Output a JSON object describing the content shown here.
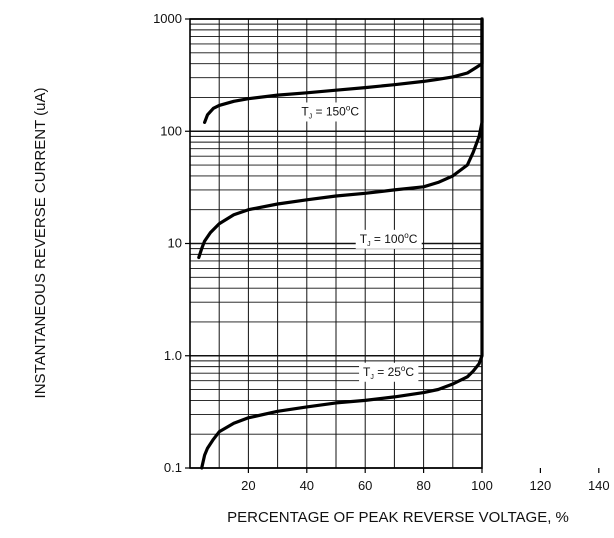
{
  "chart_data": {
    "type": "line",
    "title": "",
    "xlabel": "PERCENTAGE OF PEAK REVERSE VOLTAGE, %",
    "ylabel": "INSTANTANEOUS REVERSE CURRENT (uA)",
    "x_ticks": [
      "20",
      "40",
      "60",
      "80",
      "100",
      "120",
      "140"
    ],
    "x_tick_values": [
      20,
      40,
      60,
      80,
      100,
      120,
      140
    ],
    "y_ticks": [
      "0.1",
      "1.0",
      "10",
      "100",
      "1000"
    ],
    "y_tick_values": [
      0.1,
      1,
      10,
      100,
      1000
    ],
    "xlim": [
      0,
      140
    ],
    "ylim": [
      0.1,
      1000
    ],
    "y_scale": "log",
    "grid": true,
    "legend": "none",
    "series": [
      {
        "name": "TJ = 150°C",
        "label_parts": {
          "prefix": "T",
          "sub": "J",
          "mid": " = 150",
          "deg": "o",
          "suffix": "C"
        },
        "label_at": {
          "x": 48,
          "y": 150
        },
        "x": [
          5,
          6,
          8,
          10,
          15,
          20,
          30,
          40,
          50,
          60,
          70,
          80,
          85,
          90,
          95,
          98,
          100,
          100
        ],
        "y": [
          120,
          140,
          160,
          170,
          185,
          195,
          210,
          220,
          232,
          245,
          260,
          278,
          290,
          305,
          330,
          370,
          400,
          1000
        ]
      },
      {
        "name": "TJ = 100°C",
        "label_parts": {
          "prefix": "T",
          "sub": "J",
          "mid": " = 100",
          "deg": "o",
          "suffix": "C"
        },
        "label_at": {
          "x": 68,
          "y": 11
        },
        "x": [
          3,
          4,
          5,
          7,
          10,
          15,
          20,
          30,
          40,
          50,
          60,
          70,
          80,
          85,
          90,
          95,
          97,
          99,
          100,
          100
        ],
        "y": [
          7.5,
          9,
          10.5,
          12.5,
          15,
          18,
          20,
          22.5,
          24.5,
          26.5,
          28,
          30,
          32,
          35,
          40,
          50,
          65,
          90,
          120,
          1000
        ]
      },
      {
        "name": "TJ = 25°C",
        "label_parts": {
          "prefix": "T",
          "sub": "J",
          "mid": " = 25",
          "deg": "o",
          "suffix": "C"
        },
        "label_at": {
          "x": 68,
          "y": 0.72
        },
        "x": [
          4,
          5,
          6,
          8,
          10,
          15,
          20,
          30,
          40,
          50,
          60,
          70,
          80,
          85,
          90,
          95,
          97,
          99,
          100,
          100
        ],
        "y": [
          0.1,
          0.13,
          0.15,
          0.18,
          0.21,
          0.25,
          0.28,
          0.32,
          0.35,
          0.38,
          0.4,
          0.43,
          0.47,
          0.5,
          0.56,
          0.65,
          0.73,
          0.85,
          1,
          1000
        ]
      }
    ]
  }
}
